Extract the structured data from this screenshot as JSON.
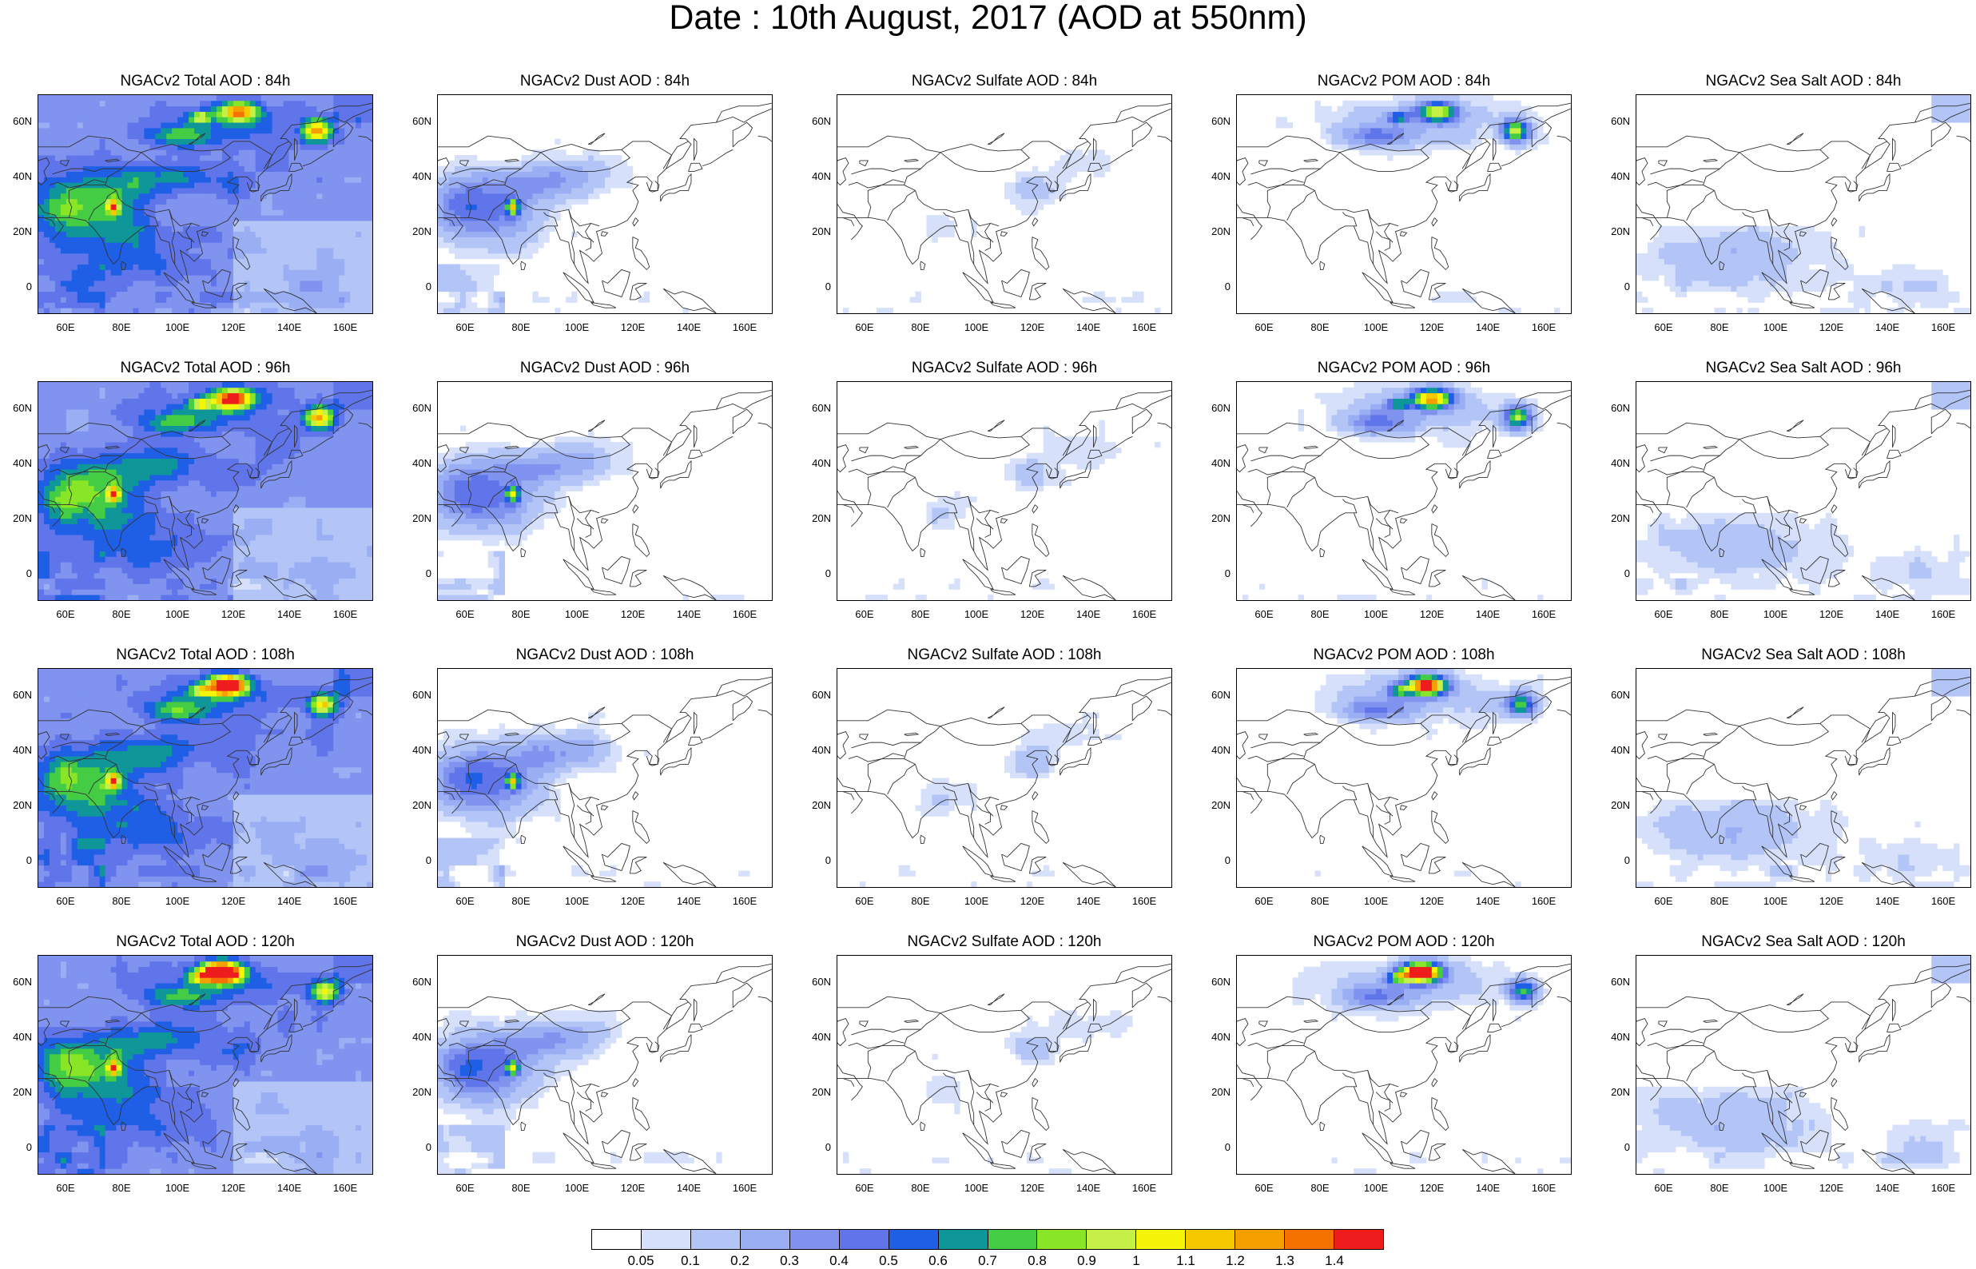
{
  "title": "Date : 10th August, 2017 (AOD at 550nm)",
  "axes": {
    "y_ticks": [
      "60N",
      "40N",
      "20N",
      "0"
    ],
    "x_ticks": [
      "60E",
      "80E",
      "100E",
      "120E",
      "140E",
      "160E"
    ]
  },
  "panels": [
    {
      "title": "NGACv2 Total AOD : 84h",
      "species": "total",
      "hour": 84
    },
    {
      "title": "NGACv2 Dust AOD : 84h",
      "species": "dust",
      "hour": 84
    },
    {
      "title": "NGACv2 Sulfate AOD : 84h",
      "species": "sulfate",
      "hour": 84
    },
    {
      "title": "NGACv2 POM AOD : 84h",
      "species": "pom",
      "hour": 84
    },
    {
      "title": "NGACv2 Sea Salt AOD : 84h",
      "species": "seasalt",
      "hour": 84
    },
    {
      "title": "NGACv2 Total AOD : 96h",
      "species": "total",
      "hour": 96
    },
    {
      "title": "NGACv2 Dust AOD : 96h",
      "species": "dust",
      "hour": 96
    },
    {
      "title": "NGACv2 Sulfate AOD : 96h",
      "species": "sulfate",
      "hour": 96
    },
    {
      "title": "NGACv2 POM AOD : 96h",
      "species": "pom",
      "hour": 96
    },
    {
      "title": "NGACv2 Sea Salt AOD : 96h",
      "species": "seasalt",
      "hour": 96
    },
    {
      "title": "NGACv2 Total AOD : 108h",
      "species": "total",
      "hour": 108
    },
    {
      "title": "NGACv2 Dust AOD : 108h",
      "species": "dust",
      "hour": 108
    },
    {
      "title": "NGACv2 Sulfate AOD : 108h",
      "species": "sulfate",
      "hour": 108
    },
    {
      "title": "NGACv2 POM AOD : 108h",
      "species": "pom",
      "hour": 108
    },
    {
      "title": "NGACv2 Sea Salt AOD : 108h",
      "species": "seasalt",
      "hour": 108
    },
    {
      "title": "NGACv2 Total AOD : 120h",
      "species": "total",
      "hour": 120
    },
    {
      "title": "NGACv2 Dust AOD : 120h",
      "species": "dust",
      "hour": 120
    },
    {
      "title": "NGACv2 Sulfate AOD : 120h",
      "species": "sulfate",
      "hour": 120
    },
    {
      "title": "NGACv2 POM AOD : 120h",
      "species": "pom",
      "hour": 120
    },
    {
      "title": "NGACv2 Sea Salt  AOD : 120h",
      "species": "seasalt",
      "hour": 120
    }
  ],
  "colorbar": {
    "colors": [
      "#ffffff",
      "#d7e0fb",
      "#b3c4f7",
      "#9aaef4",
      "#7f93ef",
      "#6075ea",
      "#1f5fe6",
      "#0f9698",
      "#44cc44",
      "#88e627",
      "#c4f048",
      "#f5f50a",
      "#f5c800",
      "#f5a000",
      "#f57200",
      "#ee1c1c"
    ],
    "labels": [
      "0.05",
      "0.1",
      "0.2",
      "0.3",
      "0.4",
      "0.5",
      "0.6",
      "0.7",
      "0.8",
      "0.9",
      "1",
      "1.1",
      "1.2",
      "1.3",
      "1.4"
    ]
  }
}
